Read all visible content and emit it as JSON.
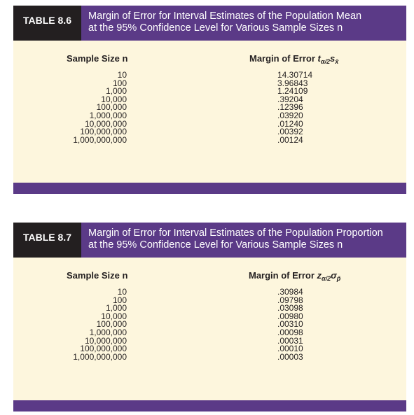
{
  "tables": [
    {
      "label": "TABLE 8.6",
      "title_line1": "Margin of Error for Interval Estimates of the Population Mean",
      "title_line2": "at the 95% Confidence Level for Various Sample Sizes n",
      "col1_header": "Sample Size n",
      "col2_header_text": "Margin of Error ",
      "col2_header_symbol": "t",
      "col2_header_sub": "α/2",
      "col2_header_tail": "s",
      "col2_header_tail_sub": "x̄",
      "sample_sizes": [
        "10",
        "100",
        "1,000",
        "10,000",
        "100,000",
        "1,000,000",
        "10,000,000",
        "100,000,000",
        "1,000,000,000"
      ],
      "margins": [
        "14.30714",
        "3.96843",
        "1.24109",
        ".39204",
        ".12396",
        ".03920",
        ".01240",
        ".00392",
        ".00124"
      ]
    },
    {
      "label": "TABLE 8.7",
      "title_line1": "Margin of Error for Interval Estimates of the Population Proportion",
      "title_line2": "at the 95% Confidence Level for Various Sample Sizes n",
      "col1_header": "Sample Size n",
      "col2_header_text": "Margin of Error ",
      "col2_header_symbol": "z",
      "col2_header_sub": "α/2",
      "col2_header_tail": "σ",
      "col2_header_tail_sub": "p̄",
      "sample_sizes": [
        "10",
        "100",
        "1,000",
        "10,000",
        "100,000",
        "1,000,000",
        "10,000,000",
        "100,000,000",
        "1,000,000,000"
      ],
      "margins": [
        ".30984",
        ".09798",
        ".03098",
        ".00980",
        ".00310",
        ".00098",
        ".00031",
        ".00010",
        ".00003"
      ]
    }
  ]
}
